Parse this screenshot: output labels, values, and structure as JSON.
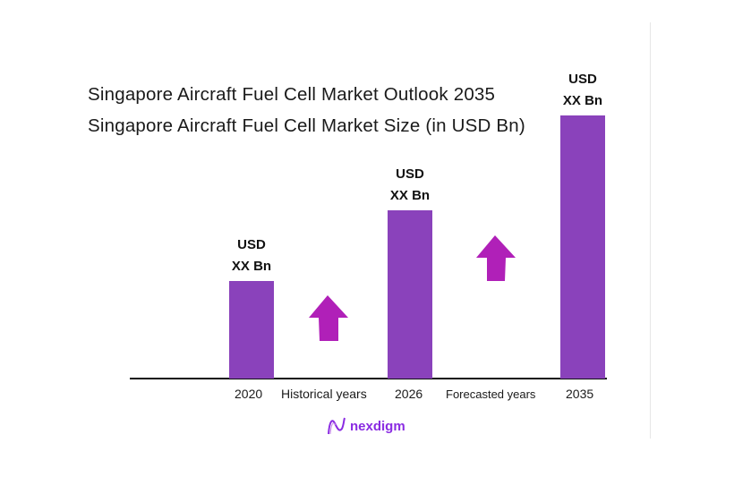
{
  "titles": {
    "line1": "Singapore Aircraft Fuel Cell Market Outlook 2035",
    "line2": "Singapore Aircraft Fuel Cell Market Size (in USD Bn)"
  },
  "chart_data": {
    "type": "bar",
    "categories": [
      "2020",
      "2026",
      "2035"
    ],
    "relative_values": [
      0.37,
      0.64,
      1.0
    ],
    "data_labels": [
      {
        "line1": "USD",
        "line2": "XX Bn"
      },
      {
        "line1": "USD",
        "line2": "XX Bn"
      },
      {
        "line1": "USD",
        "line2": "XX Bn"
      }
    ],
    "period_labels": [
      "Historical years",
      "Forecasted years"
    ],
    "bar_color": "#8a42bb",
    "arrow_color": "#b020b8",
    "grid": false
  },
  "logo": {
    "text": "nexdigm",
    "color": "#8a2be2"
  }
}
